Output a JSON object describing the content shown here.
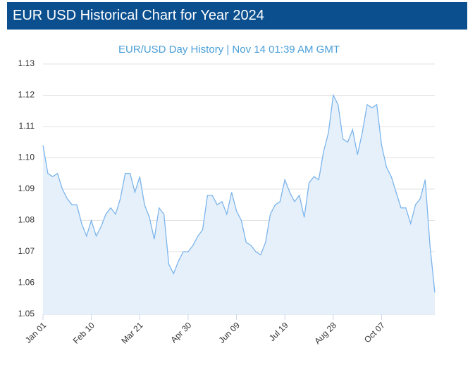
{
  "header": {
    "title": "EUR USD Historical Chart for Year 2024"
  },
  "chart_data": {
    "type": "area",
    "subtitle": "EUR/USD  Day History | Nov 14 01:39 AM GMT",
    "categories": [
      "Jan 01",
      null,
      null,
      null,
      null,
      null,
      null,
      null,
      null,
      null,
      "Feb 10",
      null,
      null,
      null,
      null,
      null,
      null,
      null,
      null,
      null,
      "Mar 21",
      null,
      null,
      null,
      null,
      null,
      null,
      null,
      null,
      null,
      "Apr 30",
      null,
      null,
      null,
      null,
      null,
      null,
      null,
      null,
      null,
      "Jun 09",
      null,
      null,
      null,
      null,
      null,
      null,
      null,
      null,
      null,
      "Jul 19",
      null,
      null,
      null,
      null,
      null,
      null,
      null,
      null,
      null,
      "Aug 28",
      null,
      null,
      null,
      null,
      null,
      null,
      null,
      null,
      null,
      "Oct 07",
      null,
      null,
      null,
      null,
      null,
      null,
      null,
      null,
      null,
      null,
      null
    ],
    "values": [
      1.104,
      1.095,
      1.094,
      1.095,
      1.09,
      1.087,
      1.085,
      1.085,
      1.079,
      1.075,
      1.08,
      1.075,
      1.078,
      1.082,
      1.084,
      1.082,
      1.087,
      1.095,
      1.095,
      1.089,
      1.094,
      1.085,
      1.081,
      1.074,
      1.084,
      1.082,
      1.066,
      1.063,
      1.067,
      1.07,
      1.07,
      1.072,
      1.075,
      1.077,
      1.088,
      1.088,
      1.085,
      1.086,
      1.082,
      1.089,
      1.083,
      1.08,
      1.073,
      1.072,
      1.07,
      1.069,
      1.073,
      1.082,
      1.085,
      1.086,
      1.093,
      1.089,
      1.086,
      1.088,
      1.081,
      1.092,
      1.094,
      1.093,
      1.102,
      1.108,
      1.12,
      1.117,
      1.106,
      1.105,
      1.109,
      1.101,
      1.108,
      1.117,
      1.116,
      1.117,
      1.104,
      1.097,
      1.094,
      1.089,
      1.084,
      1.084,
      1.079,
      1.085,
      1.087,
      1.093,
      1.072,
      1.057
    ],
    "color": "#7cb5ec",
    "ylim": [
      1.05,
      1.13
    ],
    "yticks": [
      1.05,
      1.06,
      1.07,
      1.08,
      1.09,
      {
        "value": 1.1,
        "label": "1.10"
      },
      1.11,
      1.12,
      1.13
    ],
    "grid": true
  }
}
